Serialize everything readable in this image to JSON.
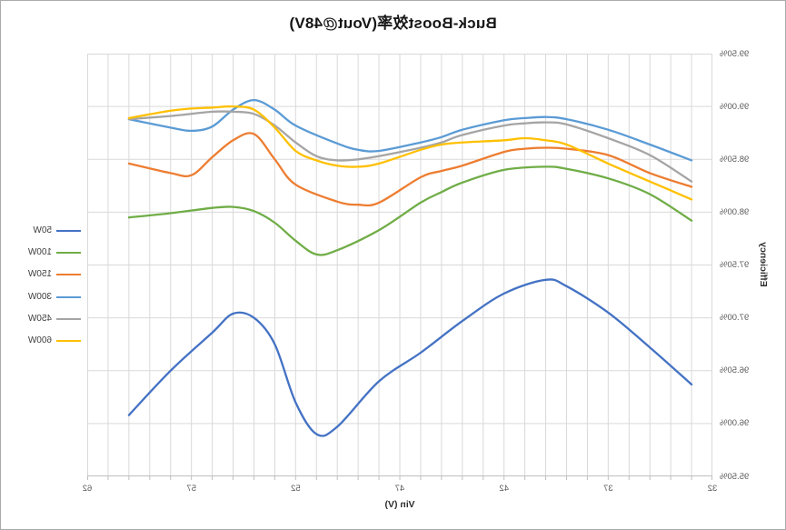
{
  "chart_data": {
    "type": "line",
    "title": "Buck-Boost效率(Vout@48V)",
    "xlabel": "Vin (V)",
    "ylabel": "Efficiency",
    "x_axis": {
      "min": 32,
      "max": 62,
      "tick_labels": [
        "32",
        "37",
        "42",
        "47",
        "52",
        "57",
        "62"
      ],
      "minor_grid_step": 1
    },
    "y_axis": {
      "min_pct": 95.5,
      "max_pct": 99.5,
      "tick_labels_top_to_bottom": [
        "99.50%",
        "99.00%",
        "98.50%",
        "98.00%",
        "97.50%",
        "97.00%",
        "96.50%",
        "96.00%",
        "95.50%"
      ],
      "grid_step_pct": 0.5
    },
    "grid": "on",
    "legend_position": "right",
    "appearance_note": "entire chart rendered horizontally mirrored",
    "series": [
      {
        "name": "50W",
        "color": "#4472C4",
        "points": [
          [
            33,
            96.37
          ],
          [
            35,
            96.72
          ],
          [
            37,
            97.05
          ],
          [
            39,
            97.3
          ],
          [
            40,
            97.36
          ],
          [
            42,
            97.23
          ],
          [
            44,
            96.97
          ],
          [
            46,
            96.67
          ],
          [
            48,
            96.4
          ],
          [
            50,
            95.97
          ],
          [
            51,
            95.9
          ],
          [
            52,
            96.2
          ],
          [
            53,
            96.75
          ],
          [
            54,
            97.0
          ],
          [
            55,
            97.04
          ],
          [
            56,
            96.86
          ],
          [
            58,
            96.5
          ],
          [
            60,
            96.08
          ]
        ]
      },
      {
        "name": "100W",
        "color": "#70AD47",
        "points": [
          [
            33,
            97.92
          ],
          [
            35,
            98.17
          ],
          [
            37,
            98.32
          ],
          [
            39,
            98.41
          ],
          [
            40,
            98.43
          ],
          [
            42,
            98.4
          ],
          [
            44,
            98.28
          ],
          [
            45,
            98.19
          ],
          [
            46,
            98.09
          ],
          [
            48,
            97.83
          ],
          [
            50,
            97.64
          ],
          [
            51,
            97.6
          ],
          [
            52,
            97.73
          ],
          [
            53,
            97.9
          ],
          [
            54,
            98.01
          ],
          [
            55,
            98.05
          ],
          [
            56,
            98.04
          ],
          [
            58,
            97.99
          ],
          [
            60,
            97.95
          ]
        ]
      },
      {
        "name": "150W",
        "color": "#ED7D31",
        "points": [
          [
            33,
            98.24
          ],
          [
            35,
            98.37
          ],
          [
            37,
            98.54
          ],
          [
            39,
            98.6
          ],
          [
            40,
            98.61
          ],
          [
            41,
            98.6
          ],
          [
            42,
            98.57
          ],
          [
            44,
            98.44
          ],
          [
            45,
            98.39
          ],
          [
            46,
            98.33
          ],
          [
            48,
            98.09
          ],
          [
            49,
            98.07
          ],
          [
            50,
            98.1
          ],
          [
            52,
            98.26
          ],
          [
            53,
            98.5
          ],
          [
            54,
            98.74
          ],
          [
            55,
            98.68
          ],
          [
            56,
            98.52
          ],
          [
            57,
            98.35
          ],
          [
            58,
            98.37
          ],
          [
            60,
            98.46
          ]
        ]
      },
      {
        "name": "300W",
        "color": "#5B9BD5",
        "points": [
          [
            33,
            98.49
          ],
          [
            35,
            98.64
          ],
          [
            37,
            98.78
          ],
          [
            39,
            98.88
          ],
          [
            40,
            98.9
          ],
          [
            41,
            98.89
          ],
          [
            42,
            98.87
          ],
          [
            44,
            98.78
          ],
          [
            45,
            98.71
          ],
          [
            46,
            98.66
          ],
          [
            48,
            98.58
          ],
          [
            49,
            98.59
          ],
          [
            50,
            98.65
          ],
          [
            52,
            98.82
          ],
          [
            53,
            98.97
          ],
          [
            54,
            99.06
          ],
          [
            55,
            98.97
          ],
          [
            56,
            98.81
          ],
          [
            57,
            98.77
          ],
          [
            58,
            98.8
          ],
          [
            60,
            98.88
          ]
        ]
      },
      {
        "name": "450W",
        "color": "#A5A5A5",
        "points": [
          [
            33,
            98.29
          ],
          [
            35,
            98.54
          ],
          [
            37,
            98.7
          ],
          [
            39,
            98.83
          ],
          [
            40,
            98.85
          ],
          [
            41,
            98.84
          ],
          [
            42,
            98.82
          ],
          [
            44,
            98.73
          ],
          [
            45,
            98.66
          ],
          [
            46,
            98.61
          ],
          [
            48,
            98.53
          ],
          [
            49,
            98.5
          ],
          [
            50,
            98.49
          ],
          [
            51,
            98.53
          ],
          [
            52,
            98.66
          ],
          [
            53,
            98.82
          ],
          [
            54,
            98.93
          ],
          [
            55,
            98.95
          ],
          [
            56,
            98.95
          ],
          [
            58,
            98.91
          ],
          [
            60,
            98.88
          ]
        ]
      },
      {
        "name": "600W",
        "color": "#FFC000",
        "points": [
          [
            33,
            98.12
          ],
          [
            35,
            98.29
          ],
          [
            37,
            98.46
          ],
          [
            39,
            98.64
          ],
          [
            40,
            98.68
          ],
          [
            41,
            98.7
          ],
          [
            42,
            98.68
          ],
          [
            44,
            98.66
          ],
          [
            45,
            98.64
          ],
          [
            46,
            98.59
          ],
          [
            48,
            98.46
          ],
          [
            49,
            98.43
          ],
          [
            50,
            98.44
          ],
          [
            51,
            98.49
          ],
          [
            52,
            98.58
          ],
          [
            53,
            98.8
          ],
          [
            54,
            98.97
          ],
          [
            55,
            99.0
          ],
          [
            56,
            98.99
          ],
          [
            57,
            98.98
          ],
          [
            58,
            98.96
          ],
          [
            60,
            98.89
          ]
        ]
      }
    ]
  },
  "colors": {
    "background": "#FFFFFF",
    "gridline": "#D9D9D9",
    "axis_line": "#BFBFBF",
    "tick_label": "#595959",
    "title_text": "#161616",
    "axis_title_text": "#2F2F2F"
  }
}
